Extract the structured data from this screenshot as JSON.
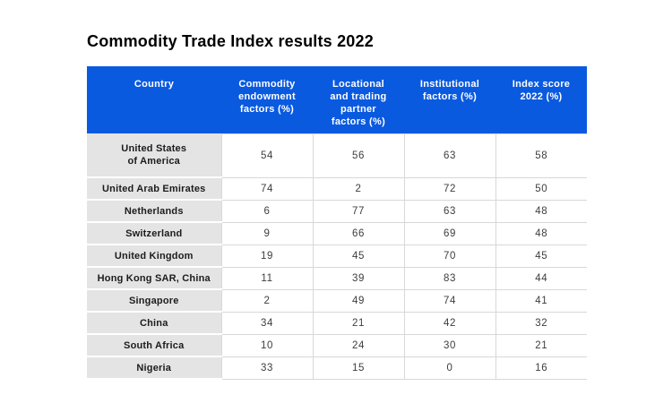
{
  "title": "Commodity Trade Index results 2022",
  "chart_data": {
    "type": "table",
    "title": "Commodity Trade Index results 2022",
    "columns": [
      "Country",
      "Commodity\nendowment\nfactors (%)",
      "Locational\nand trading\npartner\nfactors (%)",
      "Institutional\nfactors (%)",
      "Index score\n2022 (%)"
    ],
    "rows": [
      {
        "country": "United States\nof America",
        "values": [
          54,
          56,
          63,
          58
        ]
      },
      {
        "country": "United Arab Emirates",
        "values": [
          74,
          2,
          72,
          50
        ]
      },
      {
        "country": "Netherlands",
        "values": [
          6,
          77,
          63,
          48
        ]
      },
      {
        "country": "Switzerland",
        "values": [
          9,
          66,
          69,
          48
        ]
      },
      {
        "country": "United Kingdom",
        "values": [
          19,
          45,
          70,
          45
        ]
      },
      {
        "country": "Hong Kong SAR, China",
        "values": [
          11,
          39,
          83,
          44
        ]
      },
      {
        "country": "Singapore",
        "values": [
          2,
          49,
          74,
          41
        ]
      },
      {
        "country": "China",
        "values": [
          34,
          21,
          42,
          32
        ]
      },
      {
        "country": "South Africa",
        "values": [
          10,
          24,
          30,
          21
        ]
      },
      {
        "country": "Nigeria",
        "values": [
          33,
          15,
          0,
          16
        ]
      }
    ],
    "colors": {
      "header_bg": "#0a5ae0",
      "header_text": "#ffffff",
      "country_bg": "#e4e4e4",
      "grid": "#d8d8d8",
      "value_text": "#3d3d3d",
      "title_text": "#000000"
    },
    "layout": {
      "legend": "none",
      "grid": "on",
      "first_column_role": "row-header"
    }
  }
}
